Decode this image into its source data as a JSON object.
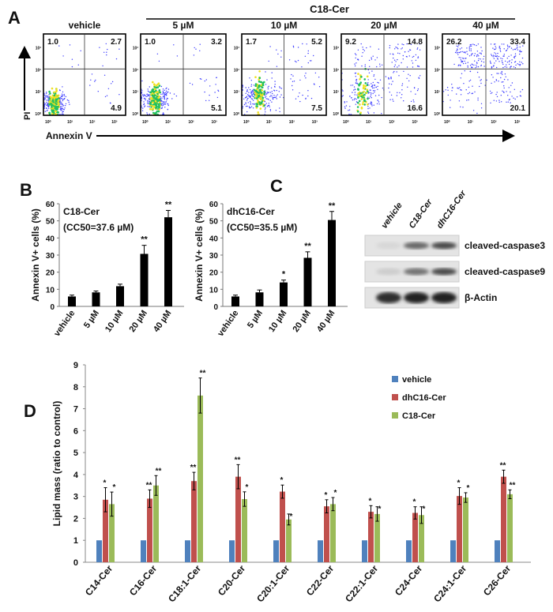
{
  "panel_letters": {
    "a": "A",
    "b": "B",
    "c": "C",
    "d": "D"
  },
  "colors": {
    "vehicle": "#4f81bd",
    "dhC16": "#c0504d",
    "C18": "#9bbb59",
    "bar_black": "#000000",
    "flow_dot": "#3a3aff"
  },
  "chart_data": [
    {
      "type": "scatter",
      "panel": "A",
      "group_label": "C18-Cer",
      "xlabel": "Annexin V",
      "ylabel": "PI",
      "log_scale": true,
      "tick_labels": [
        "10⁰",
        "10¹",
        "10²",
        "10³"
      ],
      "plots": [
        {
          "title": "vehicle",
          "quadrants": {
            "ul": "1.0",
            "ur": "2.7",
            "lr": "4.9"
          }
        },
        {
          "title": "5 µM",
          "quadrants": {
            "ul": "1.0",
            "ur": "3.2",
            "lr": "5.1"
          }
        },
        {
          "title": "10 µM",
          "quadrants": {
            "ul": "1.7",
            "ur": "5.2",
            "lr": "7.5"
          }
        },
        {
          "title": "20 µM",
          "quadrants": {
            "ul": "9.2",
            "ur": "14.8",
            "lr": "16.6"
          }
        },
        {
          "title": "40 µM",
          "quadrants": {
            "ul": "26.2",
            "ur": "33.4",
            "lr": "20.1"
          }
        }
      ]
    },
    {
      "type": "bar",
      "panel": "B-left",
      "annotation_line1": "C18-Cer",
      "annotation_line2": "(CC50=37.6 µM)",
      "ylabel": "Annexin V+ cells (%)",
      "ylim": [
        0,
        60
      ],
      "yticks": [
        "0",
        "10",
        "20",
        "30",
        "40",
        "50",
        "60"
      ],
      "categories": [
        "vehicle",
        "5 µM",
        "10 µM",
        "20 µM",
        "40 µM"
      ],
      "values": [
        5.8,
        8.2,
        11.8,
        30.7,
        52.1
      ],
      "errors": [
        0.8,
        0.8,
        1.2,
        5.0,
        4.0
      ],
      "significance": [
        "",
        "",
        "",
        "**",
        "**"
      ]
    },
    {
      "type": "bar",
      "panel": "B-right",
      "annotation_line1": "dhC16-Cer",
      "annotation_line2": "(CC50=35.5 µM)",
      "ylabel": "Annexin V+ cells (%)",
      "ylim": [
        0,
        60
      ],
      "yticks": [
        "0",
        "10",
        "20",
        "30",
        "40",
        "50",
        "60"
      ],
      "categories": [
        "vehicle",
        "5 µM",
        "10 µM",
        "20 µM",
        "40 µM"
      ],
      "values": [
        5.8,
        8.2,
        14.0,
        28.4,
        50.5
      ],
      "errors": [
        0.8,
        1.4,
        1.4,
        3.5,
        5.0
      ],
      "significance": [
        "",
        "",
        "*",
        "**",
        "**"
      ]
    },
    {
      "type": "bar",
      "panel": "D",
      "ylabel": "Lipid mass (ratio to control)",
      "ylim": [
        0,
        9
      ],
      "yticks": [
        "0",
        "1",
        "2",
        "3",
        "4",
        "5",
        "6",
        "7",
        "8",
        "9"
      ],
      "legend_position": "top-right",
      "categories": [
        "C14-Cer",
        "C16-Cer",
        "C18:1-Cer",
        "C20-Cer",
        "C20:1-Cer",
        "C22-Cer",
        "C22:1-Cer",
        "C24-Cer",
        "C24:1-Cer",
        "C26-Cer"
      ],
      "series": [
        {
          "name": "vehicle",
          "values": [
            1,
            1,
            1,
            1,
            1,
            1,
            1,
            1,
            1,
            1
          ],
          "errors": [
            0,
            0,
            0,
            0,
            0,
            0,
            0,
            0,
            0,
            0
          ],
          "significance": [
            "",
            "",
            "",
            "",
            "",
            "",
            "",
            "",
            "",
            ""
          ]
        },
        {
          "name": "dhC16-Cer",
          "values": [
            2.85,
            2.9,
            3.7,
            3.9,
            3.22,
            2.55,
            2.3,
            2.25,
            3.02,
            3.9
          ],
          "errors": [
            0.55,
            0.4,
            0.4,
            0.55,
            0.3,
            0.3,
            0.28,
            0.28,
            0.38,
            0.3
          ],
          "significance": [
            "*",
            "**",
            "**",
            "**",
            "*",
            "*",
            "*",
            "*",
            "*",
            "**"
          ]
        },
        {
          "name": "C18-Cer",
          "values": [
            2.65,
            3.5,
            7.6,
            2.88,
            1.95,
            2.65,
            2.2,
            2.15,
            2.95,
            3.1
          ],
          "errors": [
            0.55,
            0.45,
            0.8,
            0.33,
            0.25,
            0.3,
            0.33,
            0.38,
            0.22,
            0.2
          ],
          "significance": [
            "*",
            "**",
            "**",
            "*",
            "*",
            "*",
            "*",
            "*",
            "*",
            "**"
          ]
        }
      ]
    }
  ],
  "western_blot": {
    "lanes": [
      "vehicle",
      "C18-Cer",
      "dhC16-Cer"
    ],
    "rows": [
      {
        "label": "cleaved-caspase3",
        "intensities": [
          0.05,
          0.6,
          0.75
        ]
      },
      {
        "label": "cleaved-caspase9",
        "intensities": [
          0.1,
          0.55,
          0.75
        ]
      },
      {
        "label": "β-Actin",
        "intensities": [
          0.9,
          0.95,
          0.95
        ]
      }
    ]
  }
}
